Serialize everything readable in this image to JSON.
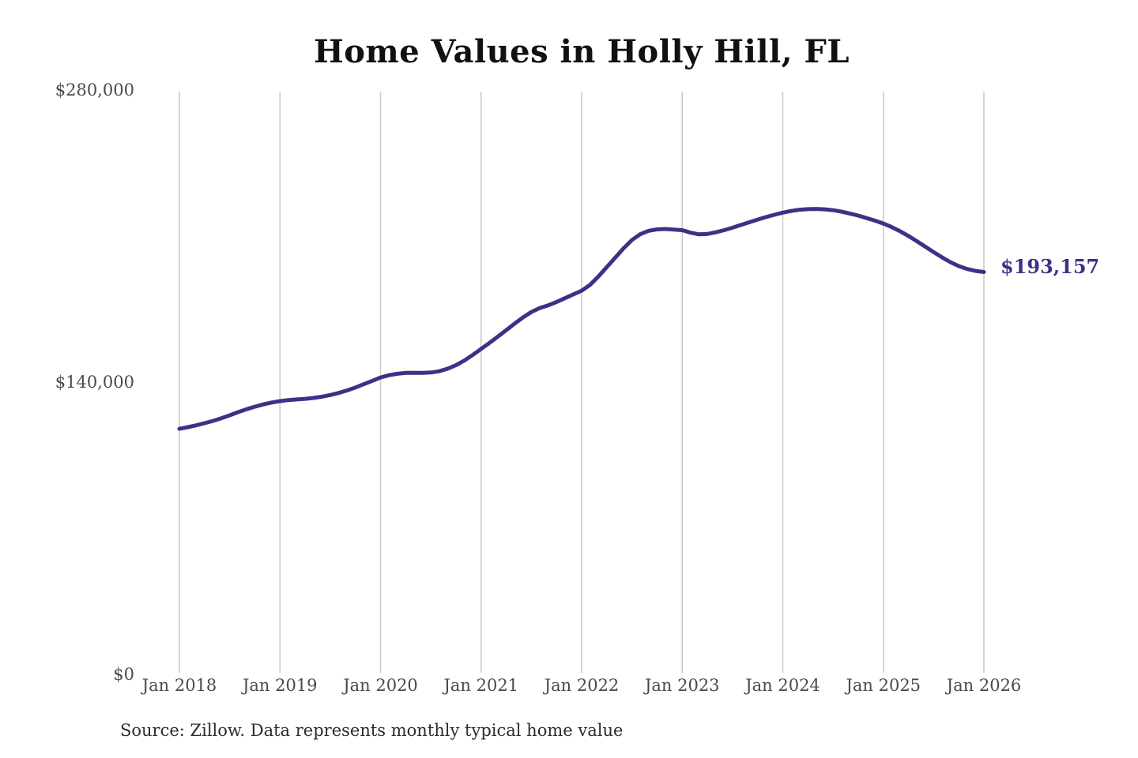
{
  "end_label": "$193,157",
  "source_note": "Source: Zillow. Data represents monthly typical home value",
  "colors": {
    "line": "#3b3287",
    "grid": "#c9c9c9",
    "axis_text": "#4a4a4a",
    "title_text": "#111111",
    "source_text": "#2b2b2b",
    "background": "#ffffff"
  },
  "chart_data": {
    "type": "line",
    "title": "Home Values in Holly Hill, FL",
    "xlabel": "",
    "ylabel": "",
    "ylim": [
      0,
      280000
    ],
    "y_ticks": [
      0,
      140000,
      280000
    ],
    "y_tick_labels": [
      "$0",
      "$140,000",
      "$280,000"
    ],
    "x_tick_labels": [
      "Jan 2018",
      "Jan 2019",
      "Jan 2020",
      "Jan 2021",
      "Jan 2022",
      "Jan 2023",
      "Jan 2024",
      "Jan 2025",
      "Jan 2026"
    ],
    "grid": "vertical-only",
    "legend": "none",
    "frequency": "monthly",
    "x_start_month": "Jan 2018",
    "x_end_month": "Jan 2026",
    "annotation": {
      "text": "$193,157",
      "x": "Jan 2026",
      "y": 193157
    },
    "series": [
      {
        "name": "Typical home value",
        "monthly_values": [
          118000,
          118800,
          119700,
          120700,
          121800,
          123100,
          124500,
          126000,
          127400,
          128600,
          129700,
          130600,
          131300,
          131800,
          132100,
          132400,
          132800,
          133400,
          134200,
          135200,
          136400,
          137800,
          139400,
          141000,
          142600,
          143700,
          144400,
          144800,
          144900,
          144800,
          145000,
          145600,
          146800,
          148500,
          150700,
          153400,
          156300,
          159200,
          162200,
          165300,
          168400,
          171400,
          174000,
          175900,
          177200,
          178800,
          180600,
          182400,
          184200,
          187000,
          191000,
          195500,
          200000,
          204500,
          208500,
          211300,
          212900,
          213600,
          213800,
          213500,
          213200,
          212000,
          211200,
          211400,
          212200,
          213200,
          214400,
          215700,
          217000,
          218300,
          219500,
          220600,
          221600,
          222400,
          223000,
          223300,
          223400,
          223200,
          222800,
          222100,
          221200,
          220200,
          219000,
          217800,
          216400,
          214700,
          212700,
          210400,
          207900,
          205300,
          202700,
          200200,
          197900,
          196000,
          194600,
          193700,
          193157
        ]
      }
    ]
  }
}
